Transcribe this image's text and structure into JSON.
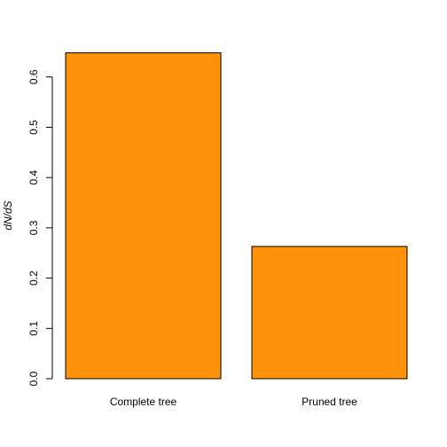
{
  "chart_data": {
    "type": "bar",
    "categories": [
      "Complete tree",
      "Pruned tree"
    ],
    "values": [
      0.648,
      0.263
    ],
    "ylabel": "dN/dS",
    "xlabel": "",
    "title": "",
    "ylim": [
      0,
      0.65
    ],
    "yticks": [
      "0.0",
      "0.1",
      "0.2",
      "0.3",
      "0.4",
      "0.5",
      "0.6"
    ],
    "bar_color": "#FF9208",
    "grid": false,
    "legend": "none"
  }
}
